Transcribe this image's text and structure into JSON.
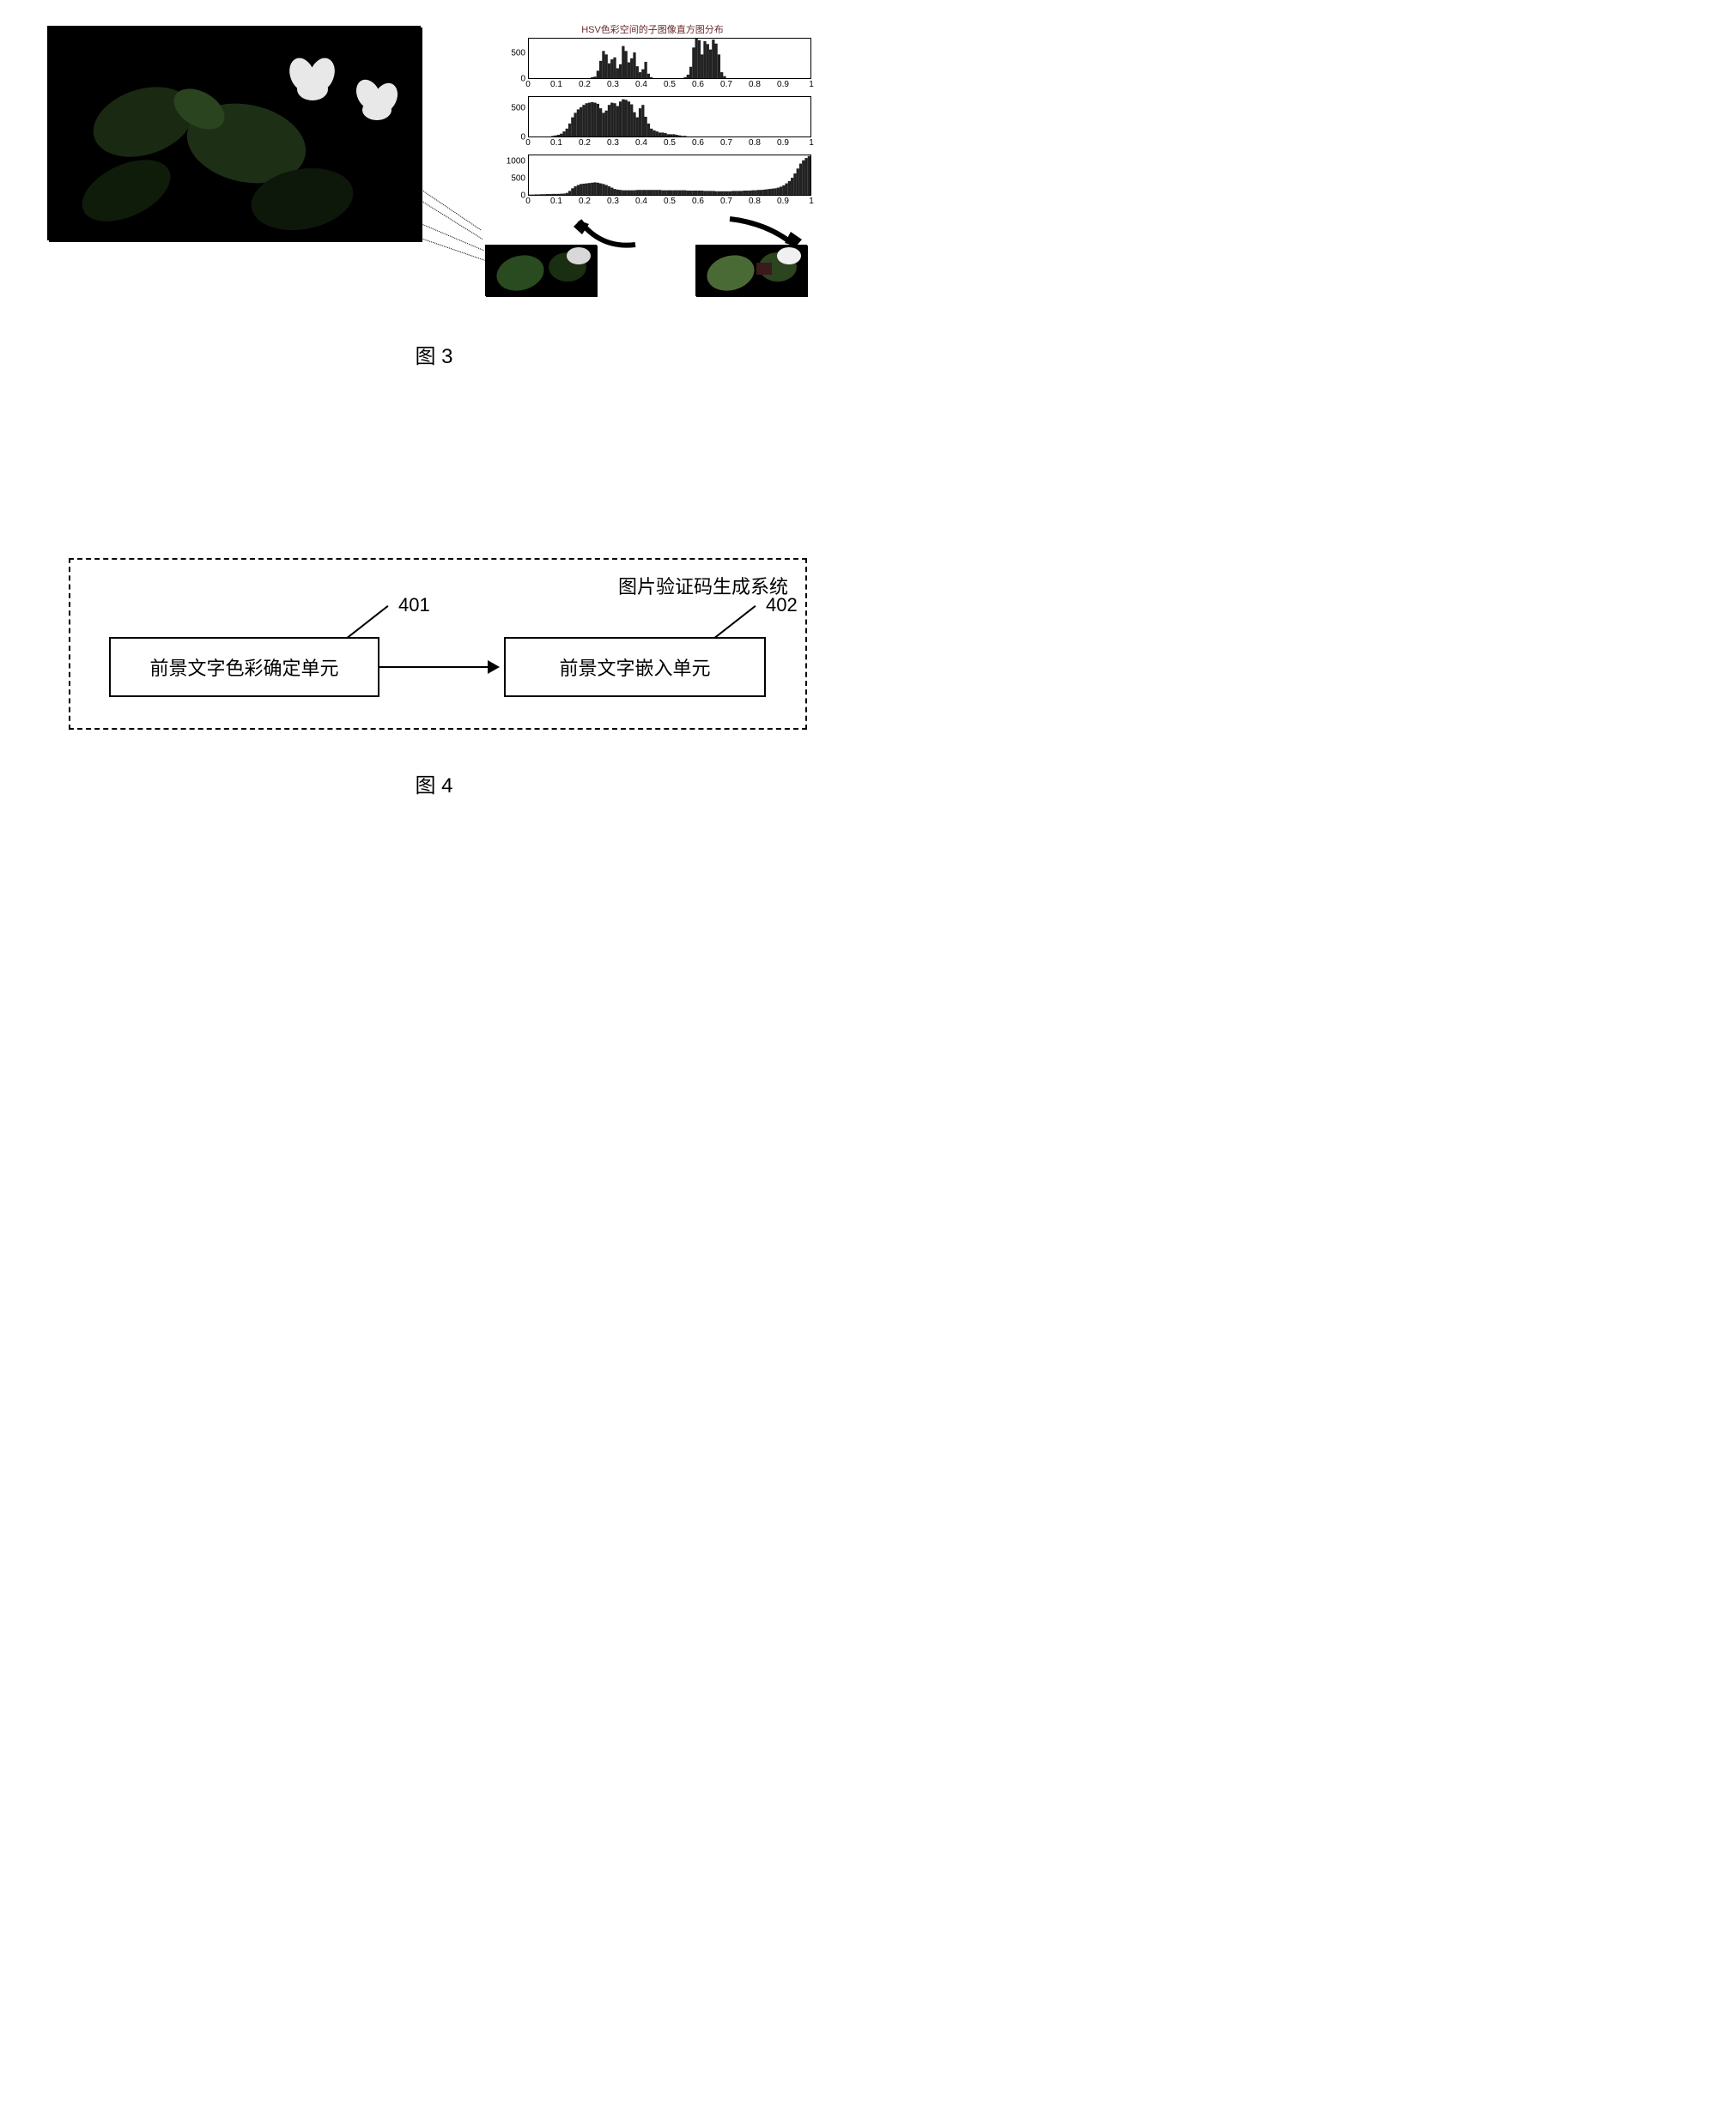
{
  "figure3": {
    "caption": "图 3",
    "chart_title": "HSV色彩空间的子图像直方图分布",
    "axis": {
      "ticks": [
        0,
        0.1,
        0.2,
        0.3,
        0.4,
        0.5,
        0.6,
        0.7,
        0.8,
        0.9,
        1
      ],
      "label_fontsize": 10
    },
    "panels": [
      {
        "yticks": [
          0,
          500
        ],
        "ylim": 800
      },
      {
        "yticks": [
          0,
          500
        ],
        "ylim": 700
      },
      {
        "yticks": [
          0,
          500,
          1000
        ],
        "ylim": 1200
      }
    ],
    "colors": {
      "border": "#000000",
      "hist_fill": "#222222",
      "title_color": "#6b2a2a",
      "background": "#ffffff"
    },
    "hist_data": {
      "H": [
        0,
        0,
        0,
        0,
        0,
        0,
        0,
        0,
        0,
        0,
        0,
        0,
        0,
        0,
        0,
        0,
        0,
        0,
        0,
        0,
        0,
        0,
        20,
        30,
        150,
        350,
        550,
        480,
        300,
        380,
        420,
        200,
        280,
        650,
        550,
        320,
        400,
        520,
        240,
        120,
        180,
        330,
        90,
        20,
        0,
        0,
        0,
        0,
        0,
        0,
        0,
        0,
        0,
        0,
        0,
        20,
        70,
        230,
        620,
        800,
        770,
        480,
        750,
        690,
        580,
        780,
        700,
        480,
        120,
        40,
        0,
        0,
        0,
        0,
        0,
        0,
        0,
        0,
        0,
        0,
        0,
        0,
        0,
        0,
        0,
        0,
        0,
        0,
        0,
        0,
        0,
        0,
        0,
        0,
        0,
        0,
        0,
        0,
        0,
        0
      ],
      "S": [
        0,
        0,
        0,
        0,
        0,
        0,
        0,
        0,
        10,
        20,
        30,
        50,
        90,
        140,
        230,
        340,
        420,
        480,
        520,
        560,
        590,
        600,
        610,
        600,
        580,
        500,
        420,
        460,
        560,
        600,
        590,
        540,
        620,
        660,
        650,
        620,
        570,
        430,
        340,
        500,
        560,
        350,
        230,
        140,
        110,
        90,
        70,
        70,
        60,
        40,
        40,
        40,
        30,
        20,
        10,
        10,
        0,
        0,
        0,
        0,
        0,
        0,
        0,
        0,
        0,
        0,
        0,
        0,
        0,
        0,
        0,
        0,
        0,
        0,
        0,
        0,
        0,
        0,
        0,
        0,
        0,
        0,
        0,
        0,
        0,
        0,
        0,
        0,
        0,
        0,
        0,
        0,
        0,
        0,
        0,
        0,
        0,
        0,
        0,
        0
      ],
      "V": [
        10,
        10,
        15,
        15,
        20,
        20,
        25,
        25,
        30,
        30,
        30,
        35,
        40,
        60,
        120,
        200,
        260,
        300,
        330,
        340,
        350,
        360,
        370,
        380,
        370,
        350,
        330,
        300,
        260,
        220,
        180,
        160,
        150,
        140,
        140,
        140,
        140,
        140,
        150,
        150,
        150,
        150,
        150,
        150,
        150,
        150,
        150,
        140,
        140,
        140,
        140,
        140,
        140,
        140,
        140,
        140,
        130,
        130,
        130,
        130,
        130,
        130,
        120,
        120,
        120,
        120,
        110,
        110,
        110,
        110,
        110,
        110,
        120,
        120,
        120,
        120,
        130,
        130,
        130,
        140,
        140,
        150,
        150,
        160,
        170,
        180,
        190,
        200,
        220,
        250,
        290,
        350,
        420,
        520,
        650,
        800,
        950,
        1050,
        1120,
        1180
      ]
    }
  },
  "figure4": {
    "caption": "图 4",
    "system_title": "图片验证码生成系统",
    "blocks": [
      {
        "id": "401",
        "label": "前景文字色彩确定单元"
      },
      {
        "id": "402",
        "label": "前景文字嵌入单元"
      }
    ],
    "colors": {
      "border": "#000000",
      "text": "#000000",
      "background": "#ffffff"
    },
    "font_size_pt": 16
  }
}
